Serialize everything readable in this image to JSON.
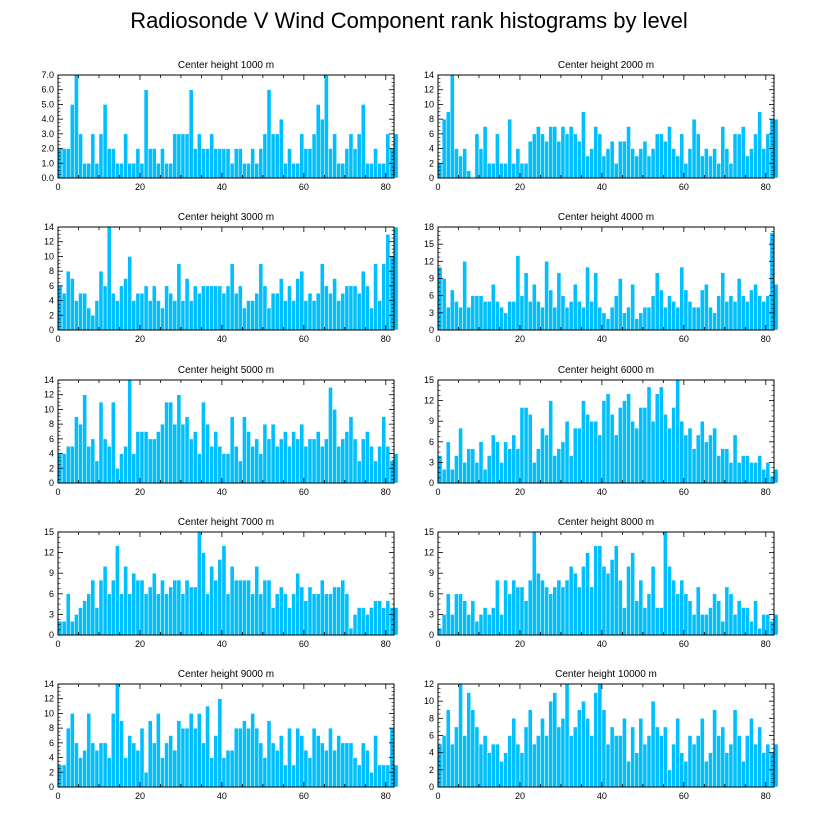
{
  "title": "Radiosonde V Wind Component rank histograms by level",
  "colors": {
    "bar": "#00BFFF",
    "bar_stroke": "#ffffff",
    "axis": "#000000"
  },
  "chart_data": [
    {
      "type": "bar",
      "title": "Center height 1000 m",
      "xlim": [
        0,
        82
      ],
      "xticks": [
        0,
        20,
        40,
        60,
        80
      ],
      "ylim": [
        0,
        7
      ],
      "yticks": [
        "0.0",
        "1.0",
        "2.0",
        "3.0",
        "4.0",
        "5.0",
        "6.0",
        "7.0"
      ],
      "values": [
        2,
        2,
        2,
        5,
        7,
        3,
        1,
        1,
        3,
        1,
        3,
        5,
        2,
        2,
        1,
        1,
        3,
        1,
        1,
        2,
        1,
        6,
        2,
        2,
        1,
        2,
        1,
        1,
        3,
        3,
        3,
        3,
        6,
        2,
        3,
        2,
        2,
        3,
        2,
        2,
        2,
        2,
        1,
        2,
        2,
        1,
        1,
        2,
        1,
        2,
        3,
        6,
        3,
        3,
        4,
        1,
        2,
        1,
        1,
        3,
        2,
        2,
        3,
        5,
        4,
        7,
        2,
        3,
        1,
        1,
        2,
        3,
        2,
        3,
        5,
        1,
        1,
        2,
        1,
        1,
        3,
        2,
        3
      ]
    },
    {
      "type": "bar",
      "title": "Center height 2000 m",
      "xlim": [
        0,
        82
      ],
      "xticks": [
        0,
        20,
        40,
        60,
        80
      ],
      "ylim": [
        0,
        14
      ],
      "yticks": [
        "0",
        "2",
        "4",
        "6",
        "8",
        "10",
        "12",
        "14"
      ],
      "values": [
        2,
        8,
        9,
        14,
        4,
        3,
        4,
        1,
        0,
        6,
        4,
        7,
        2,
        2,
        6,
        2,
        2,
        8,
        2,
        4,
        2,
        2,
        5,
        6,
        7,
        6,
        5,
        7,
        7,
        5,
        7,
        6,
        7,
        6,
        5,
        9,
        3,
        4,
        7,
        6,
        3,
        4,
        5,
        2,
        5,
        5,
        7,
        4,
        3,
        4,
        5,
        3,
        4,
        6,
        6,
        5,
        7,
        4,
        3,
        6,
        2,
        4,
        8,
        6,
        3,
        4,
        3,
        4,
        2,
        7,
        4,
        2,
        6,
        6,
        7,
        3,
        4,
        6,
        9,
        4,
        6,
        8,
        8
      ]
    },
    {
      "type": "bar",
      "title": "Center height 3000 m",
      "xlim": [
        0,
        82
      ],
      "xticks": [
        0,
        20,
        40,
        60,
        80
      ],
      "ylim": [
        0,
        14
      ],
      "yticks": [
        "0",
        "2",
        "4",
        "6",
        "8",
        "10",
        "12",
        "14"
      ],
      "values": [
        6,
        5,
        8,
        7,
        4,
        5,
        5,
        3,
        2,
        4,
        8,
        6,
        14,
        5,
        4,
        6,
        7,
        10,
        4,
        5,
        5,
        6,
        4,
        6,
        4,
        3,
        6,
        5,
        4,
        9,
        4,
        7,
        4,
        6,
        5,
        6,
        6,
        6,
        6,
        6,
        5,
        6,
        9,
        5,
        6,
        3,
        4,
        4,
        5,
        9,
        6,
        3,
        5,
        5,
        7,
        4,
        6,
        4,
        7,
        8,
        4,
        5,
        4,
        5,
        9,
        6,
        5,
        7,
        4,
        5,
        6,
        6,
        6,
        5,
        8,
        6,
        3,
        9,
        4,
        9,
        13,
        10,
        14
      ]
    },
    {
      "type": "bar",
      "title": "Center height 4000 m",
      "xlim": [
        0,
        82
      ],
      "xticks": [
        0,
        20,
        40,
        60,
        80
      ],
      "ylim": [
        0,
        18
      ],
      "yticks": [
        "0",
        "3",
        "6",
        "9",
        "12",
        "15",
        "18"
      ],
      "values": [
        11,
        9,
        4,
        7,
        5,
        4,
        12,
        4,
        6,
        6,
        6,
        5,
        5,
        8,
        5,
        4,
        3,
        5,
        5,
        13,
        6,
        10,
        5,
        8,
        5,
        4,
        12,
        7,
        4,
        10,
        6,
        4,
        5,
        8,
        5,
        4,
        11,
        5,
        10,
        4,
        3,
        2,
        4,
        6,
        9,
        3,
        4,
        8,
        2,
        3,
        4,
        4,
        6,
        10,
        7,
        4,
        6,
        5,
        4,
        11,
        7,
        5,
        4,
        4,
        7,
        8,
        4,
        3,
        6,
        10,
        5,
        6,
        5,
        9,
        6,
        5,
        7,
        8,
        6,
        5,
        6,
        17,
        8
      ]
    },
    {
      "type": "bar",
      "title": "Center height 5000 m",
      "xlim": [
        0,
        82
      ],
      "xticks": [
        0,
        20,
        40,
        60,
        80
      ],
      "ylim": [
        0,
        14
      ],
      "yticks": [
        "0",
        "2",
        "4",
        "6",
        "8",
        "10",
        "12",
        "14"
      ],
      "values": [
        4,
        4,
        5,
        5,
        9,
        8,
        12,
        5,
        6,
        3,
        11,
        6,
        5,
        11,
        2,
        4,
        5,
        14,
        4,
        7,
        7,
        7,
        6,
        6,
        7,
        8,
        11,
        11,
        8,
        12,
        8,
        9,
        6,
        7,
        4,
        11,
        8,
        5,
        7,
        5,
        4,
        4,
        9,
        5,
        3,
        9,
        7,
        5,
        6,
        4,
        8,
        6,
        8,
        5,
        6,
        7,
        5,
        7,
        6,
        8,
        5,
        6,
        6,
        7,
        5,
        6,
        13,
        10,
        5,
        6,
        7,
        9,
        6,
        3,
        6,
        7,
        5,
        3,
        5,
        9,
        5,
        3,
        4
      ]
    },
    {
      "type": "bar",
      "title": "Center height 6000 m",
      "xlim": [
        0,
        82
      ],
      "xticks": [
        0,
        20,
        40,
        60,
        80
      ],
      "ylim": [
        0,
        15
      ],
      "yticks": [
        "0",
        "3",
        "6",
        "9",
        "12",
        "15"
      ],
      "values": [
        4,
        2,
        6,
        2,
        4,
        8,
        3,
        5,
        5,
        3,
        6,
        2,
        4,
        7,
        6,
        3,
        6,
        5,
        7,
        5,
        11,
        11,
        10,
        3,
        5,
        8,
        7,
        12,
        4,
        5,
        6,
        9,
        4,
        8,
        8,
        12,
        10,
        9,
        9,
        7,
        12,
        13,
        10,
        7,
        11,
        12,
        13,
        9,
        8,
        11,
        11,
        14,
        9,
        13,
        14,
        10,
        8,
        11,
        15,
        9,
        7,
        8,
        5,
        7,
        9,
        6,
        7,
        8,
        4,
        5,
        5,
        3,
        7,
        3,
        4,
        4,
        3,
        3,
        4,
        2,
        3,
        1,
        2
      ]
    },
    {
      "type": "bar",
      "title": "Center height 7000 m",
      "xlim": [
        0,
        82
      ],
      "xticks": [
        0,
        20,
        40,
        60,
        80
      ],
      "ylim": [
        0,
        15
      ],
      "yticks": [
        "0",
        "3",
        "6",
        "9",
        "12",
        "15"
      ],
      "values": [
        2,
        2,
        6,
        2,
        3,
        4,
        5,
        6,
        8,
        4,
        8,
        10,
        6,
        8,
        13,
        6,
        10,
        6,
        9,
        8,
        8,
        6,
        7,
        9,
        6,
        8,
        6,
        7,
        8,
        8,
        6,
        8,
        7,
        7,
        15,
        12,
        6,
        10,
        8,
        11,
        13,
        6,
        10,
        8,
        8,
        8,
        8,
        6,
        10,
        6,
        8,
        8,
        4,
        6,
        7,
        6,
        4,
        6,
        9,
        7,
        5,
        7,
        6,
        6,
        8,
        6,
        6,
        7,
        7,
        8,
        6,
        1,
        3,
        4,
        4,
        3,
        4,
        5,
        5,
        4,
        5,
        4,
        4
      ]
    },
    {
      "type": "bar",
      "title": "Center height 8000 m",
      "xlim": [
        0,
        82
      ],
      "xticks": [
        0,
        20,
        40,
        60,
        80
      ],
      "ylim": [
        0,
        15
      ],
      "yticks": [
        "0",
        "3",
        "6",
        "9",
        "12",
        "15"
      ],
      "values": [
        1,
        3,
        6,
        3,
        6,
        6,
        5,
        3,
        5,
        2,
        3,
        4,
        3,
        4,
        8,
        3,
        8,
        6,
        8,
        7,
        7,
        5,
        8,
        15,
        9,
        8,
        7,
        6,
        7,
        8,
        7,
        8,
        10,
        9,
        7,
        10,
        12,
        7,
        13,
        13,
        10,
        9,
        11,
        13,
        8,
        4,
        10,
        12,
        5,
        8,
        4,
        6,
        10,
        4,
        4,
        15,
        10,
        8,
        6,
        8,
        6,
        5,
        3,
        7,
        3,
        3,
        4,
        6,
        5,
        2,
        7,
        6,
        3,
        5,
        4,
        4,
        2,
        5,
        1,
        3,
        3,
        2,
        3
      ]
    },
    {
      "type": "bar",
      "title": "Center height 9000 m",
      "xlim": [
        0,
        82
      ],
      "xticks": [
        0,
        20,
        40,
        60,
        80
      ],
      "ylim": [
        0,
        14
      ],
      "yticks": [
        "0",
        "2",
        "4",
        "6",
        "8",
        "10",
        "12",
        "14"
      ],
      "values": [
        3,
        3,
        8,
        10,
        6,
        4,
        5,
        10,
        6,
        5,
        6,
        6,
        4,
        10,
        14,
        9,
        4,
        7,
        6,
        5,
        8,
        2,
        9,
        6,
        10,
        4,
        6,
        7,
        5,
        9,
        8,
        8,
        10,
        8,
        10,
        6,
        11,
        4,
        7,
        12,
        4,
        5,
        5,
        8,
        8,
        9,
        8,
        10,
        8,
        6,
        4,
        9,
        6,
        5,
        7,
        3,
        8,
        3,
        8,
        7,
        5,
        4,
        8,
        7,
        6,
        5,
        8,
        5,
        7,
        6,
        6,
        6,
        4,
        3,
        6,
        5,
        2,
        7,
        3,
        3,
        3,
        8,
        3
      ]
    },
    {
      "type": "bar",
      "title": "Center height 10000 m",
      "xlim": [
        0,
        82
      ],
      "xticks": [
        0,
        20,
        40,
        60,
        80
      ],
      "ylim": [
        0,
        12
      ],
      "yticks": [
        "0",
        "2",
        "4",
        "6",
        "8",
        "10",
        "12"
      ],
      "values": [
        5,
        6,
        9,
        5,
        7,
        12,
        6,
        11,
        9,
        7,
        5,
        6,
        4,
        5,
        5,
        3,
        4,
        6,
        8,
        5,
        4,
        7,
        9,
        5,
        6,
        8,
        6,
        10,
        11,
        7,
        8,
        12,
        6,
        7,
        9,
        10,
        8,
        6,
        11,
        12,
        9,
        5,
        7,
        6,
        6,
        8,
        3,
        7,
        4,
        8,
        5,
        6,
        10,
        7,
        6,
        7,
        2,
        5,
        8,
        4,
        3,
        6,
        5,
        6,
        8,
        3,
        4,
        9,
        6,
        7,
        4,
        5,
        9,
        6,
        3,
        6,
        8,
        5,
        7,
        4,
        5,
        4,
        5
      ]
    }
  ]
}
